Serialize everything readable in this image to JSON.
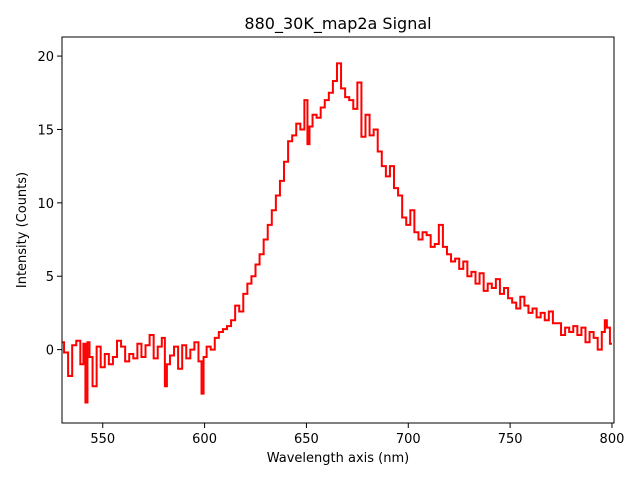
{
  "chart_data": {
    "type": "line",
    "drawstyle": "steps-mid",
    "title": "880_30K_map2a Signal",
    "xlabel": "Wavelength axis (nm)",
    "ylabel": "Intensity (Counts)",
    "xlim": [
      530,
      801
    ],
    "ylim": [
      -5,
      21.3
    ],
    "xticks": [
      550,
      600,
      650,
      700,
      750,
      800
    ],
    "yticks": [
      0,
      5,
      10,
      15,
      20
    ],
    "grid": false,
    "legend": "none",
    "series": [
      {
        "color": "#ff0000",
        "x": [
          530,
          532,
          534,
          536,
          538,
          540,
          541,
          542,
          543,
          544,
          546,
          548,
          550,
          552,
          554,
          556,
          558,
          560,
          562,
          564,
          566,
          568,
          570,
          572,
          574,
          576,
          578,
          580,
          581,
          582,
          584,
          586,
          588,
          590,
          592,
          594,
          596,
          598,
          599,
          600,
          602,
          604,
          606,
          608,
          610,
          612,
          614,
          616,
          618,
          620,
          622,
          624,
          626,
          628,
          630,
          632,
          634,
          636,
          638,
          640,
          642,
          644,
          646,
          648,
          650,
          651,
          652,
          654,
          656,
          658,
          660,
          662,
          664,
          666,
          668,
          670,
          672,
          674,
          676,
          678,
          680,
          682,
          684,
          686,
          688,
          690,
          692,
          694,
          696,
          698,
          700,
          702,
          704,
          706,
          708,
          710,
          712,
          714,
          716,
          718,
          720,
          722,
          724,
          726,
          728,
          730,
          732,
          734,
          736,
          738,
          740,
          742,
          744,
          746,
          748,
          750,
          752,
          754,
          756,
          758,
          760,
          762,
          764,
          766,
          768,
          770,
          772,
          774,
          776,
          778,
          780,
          782,
          784,
          786,
          788,
          790,
          792,
          794,
          796,
          797,
          798,
          800
        ],
        "y": [
          0.5,
          -0.2,
          -1.8,
          0.3,
          0.6,
          -1.0,
          0.4,
          -3.6,
          0.5,
          -0.5,
          -2.5,
          0.2,
          -1.2,
          -0.3,
          -1.0,
          -0.5,
          0.6,
          0.2,
          -0.8,
          -0.3,
          -0.6,
          0.4,
          -0.5,
          0.3,
          1.0,
          -0.6,
          0.2,
          0.8,
          -2.5,
          -1.0,
          -0.4,
          0.2,
          -1.3,
          0.3,
          -0.6,
          0.0,
          0.5,
          -0.8,
          -3.0,
          -0.5,
          0.2,
          0.0,
          0.8,
          1.2,
          1.4,
          1.6,
          2.0,
          3.0,
          2.6,
          3.8,
          4.5,
          5.0,
          5.8,
          6.5,
          7.5,
          8.5,
          9.5,
          10.5,
          11.5,
          12.8,
          14.2,
          14.6,
          15.4,
          15.0,
          17.0,
          14.0,
          15.2,
          16.0,
          15.8,
          16.5,
          17.0,
          17.5,
          18.3,
          19.5,
          17.8,
          17.2,
          17.0,
          16.4,
          18.2,
          14.5,
          16.0,
          14.6,
          15.0,
          13.5,
          12.5,
          11.8,
          12.5,
          11.0,
          10.5,
          9.0,
          8.5,
          9.5,
          8.0,
          7.5,
          8.0,
          7.8,
          7.0,
          7.2,
          8.5,
          7.0,
          6.5,
          6.0,
          6.2,
          5.5,
          6.0,
          5.0,
          5.3,
          4.5,
          5.2,
          4.0,
          4.5,
          4.2,
          4.8,
          3.8,
          4.2,
          3.5,
          3.2,
          2.8,
          3.6,
          3.0,
          2.5,
          2.8,
          2.2,
          2.5,
          2.0,
          2.6,
          1.8,
          1.8,
          1.0,
          1.5,
          1.2,
          1.6,
          1.0,
          1.5,
          0.5,
          1.2,
          0.8,
          0.0,
          1.2,
          2.0,
          1.5,
          0.4
        ]
      }
    ]
  }
}
